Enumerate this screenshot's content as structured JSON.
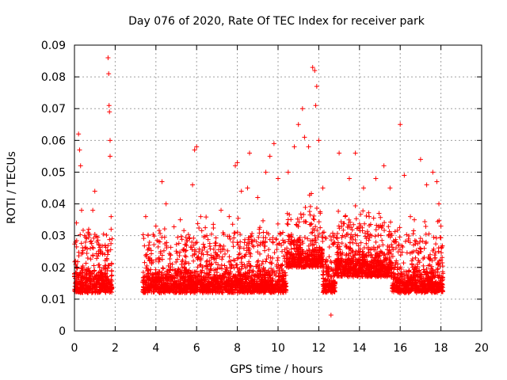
{
  "chart_data": {
    "type": "scatter",
    "title": "Day 076 of 2020, Rate Of TEC Index for receiver park",
    "xlabel": "GPS time / hours",
    "ylabel": "ROTI / TECUs",
    "xlim": [
      0,
      20
    ],
    "ylim": [
      0,
      0.09
    ],
    "x_ticks": [
      0,
      2,
      4,
      6,
      8,
      10,
      12,
      14,
      16,
      18,
      20
    ],
    "y_ticks": [
      0,
      0.01,
      0.02,
      0.03,
      0.04,
      0.05,
      0.06,
      0.07,
      0.08,
      0.09
    ],
    "x_tick_labels": [
      "0",
      "2",
      "4",
      "6",
      "8",
      "10",
      "12",
      "14",
      "16",
      "18",
      "20"
    ],
    "y_tick_labels": [
      "0",
      "0.01",
      "0.02",
      "0.03",
      "0.04",
      "0.05",
      "0.06",
      "0.07",
      "0.08",
      "0.09"
    ],
    "grid": true,
    "marker": "+",
    "series": [
      {
        "name": "ROTI",
        "color": "#ff0000",
        "segments": [
          {
            "x_start": 0.0,
            "x_end": 1.85
          },
          {
            "x_start": 3.35,
            "x_end": 18.1
          }
        ],
        "points": [
          [
            0.05,
            0.022
          ],
          [
            0.1,
            0.034
          ],
          [
            0.2,
            0.062
          ],
          [
            0.25,
            0.057
          ],
          [
            0.3,
            0.052
          ],
          [
            0.35,
            0.038
          ],
          [
            0.5,
            0.03
          ],
          [
            0.7,
            0.032
          ],
          [
            0.9,
            0.038
          ],
          [
            1.0,
            0.044
          ],
          [
            1.1,
            0.028
          ],
          [
            1.3,
            0.025
          ],
          [
            1.55,
            0.018
          ],
          [
            1.65,
            0.086
          ],
          [
            1.68,
            0.081
          ],
          [
            1.7,
            0.071
          ],
          [
            1.72,
            0.069
          ],
          [
            1.75,
            0.06
          ],
          [
            1.75,
            0.055
          ],
          [
            1.8,
            0.032
          ],
          [
            1.8,
            0.036
          ],
          [
            3.5,
            0.036
          ],
          [
            4.0,
            0.033
          ],
          [
            4.3,
            0.047
          ],
          [
            4.5,
            0.04
          ],
          [
            5.2,
            0.035
          ],
          [
            5.8,
            0.046
          ],
          [
            5.9,
            0.057
          ],
          [
            6.0,
            0.058
          ],
          [
            6.2,
            0.036
          ],
          [
            6.5,
            0.03
          ],
          [
            7.2,
            0.038
          ],
          [
            7.6,
            0.036
          ],
          [
            7.9,
            0.052
          ],
          [
            8.0,
            0.053
          ],
          [
            8.2,
            0.044
          ],
          [
            8.5,
            0.045
          ],
          [
            8.6,
            0.056
          ],
          [
            9.0,
            0.042
          ],
          [
            9.4,
            0.05
          ],
          [
            9.6,
            0.055
          ],
          [
            9.8,
            0.059
          ],
          [
            10.0,
            0.048
          ],
          [
            10.5,
            0.05
          ],
          [
            10.8,
            0.058
          ],
          [
            11.0,
            0.065
          ],
          [
            11.2,
            0.07
          ],
          [
            11.3,
            0.061
          ],
          [
            11.5,
            0.058
          ],
          [
            11.7,
            0.083
          ],
          [
            11.8,
            0.082
          ],
          [
            11.85,
            0.071
          ],
          [
            11.9,
            0.077
          ],
          [
            12.0,
            0.06
          ],
          [
            12.2,
            0.045
          ],
          [
            12.4,
            0.02
          ],
          [
            12.6,
            0.005
          ],
          [
            13.0,
            0.056
          ],
          [
            13.5,
            0.048
          ],
          [
            13.8,
            0.056
          ],
          [
            14.2,
            0.045
          ],
          [
            14.8,
            0.048
          ],
          [
            15.2,
            0.052
          ],
          [
            15.5,
            0.045
          ],
          [
            16.0,
            0.065
          ],
          [
            16.2,
            0.049
          ],
          [
            16.5,
            0.036
          ],
          [
            17.0,
            0.054
          ],
          [
            17.3,
            0.046
          ],
          [
            17.6,
            0.05
          ],
          [
            17.8,
            0.047
          ],
          [
            17.9,
            0.04
          ],
          [
            18.0,
            0.033
          ]
        ]
      }
    ]
  }
}
